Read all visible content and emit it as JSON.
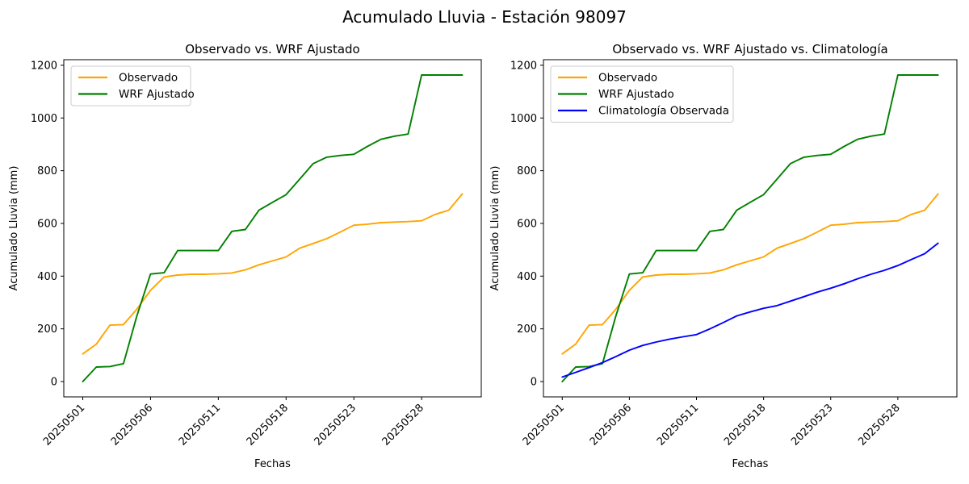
{
  "figure": {
    "title": "Acumulado Lluvia - Estación 98097"
  },
  "chart_data": [
    {
      "type": "line",
      "title": "Observado vs. WRF Ajustado",
      "xlabel": "Fechas",
      "ylabel": "Acumulado Lluvia (mm)",
      "n_points": 29,
      "x": [
        0,
        1,
        2,
        3,
        4,
        5,
        6,
        7,
        8,
        9,
        10,
        11,
        12,
        13,
        14,
        15,
        16,
        17,
        18,
        19,
        20,
        21,
        22,
        23,
        24,
        25,
        26,
        27,
        28
      ],
      "xticks": {
        "positions": [
          0,
          5,
          10,
          15,
          20,
          25
        ],
        "labels": [
          "20250501",
          "20250506",
          "20250511",
          "20250518",
          "20250523",
          "20250528"
        ],
        "rotation": 45
      },
      "yticks": [
        "0",
        "200",
        "400",
        "600",
        "800",
        "1000",
        "1200"
      ],
      "ytick_values": [
        0,
        200,
        400,
        600,
        800,
        1000,
        1200
      ],
      "ylim": [
        0,
        1200
      ],
      "grid": false,
      "legend_position": "upper left",
      "series": [
        {
          "name": "Observado",
          "color": "#FFA500",
          "values": [
            105,
            142,
            214,
            216,
            275,
            346,
            397,
            404,
            407,
            407,
            409,
            412,
            424,
            443,
            458,
            473,
            506,
            524,
            542,
            567,
            593,
            597,
            603,
            605,
            607,
            610,
            634,
            650,
            712
          ]
        },
        {
          "name": "WRF Ajustado",
          "color": "#008000",
          "values": [
            0,
            55,
            57,
            68,
            250,
            408,
            413,
            497,
            497,
            497,
            497,
            570,
            577,
            650,
            680,
            709,
            768,
            827,
            851,
            858,
            862,
            892,
            919,
            931,
            939,
            1163,
            1163,
            1163,
            1163
          ]
        }
      ]
    },
    {
      "type": "line",
      "title": "Observado vs. WRF Ajustado vs. Climatología",
      "xlabel": "Fechas",
      "ylabel": "Acumulado Lluvia (mm)",
      "n_points": 29,
      "x": [
        0,
        1,
        2,
        3,
        4,
        5,
        6,
        7,
        8,
        9,
        10,
        11,
        12,
        13,
        14,
        15,
        16,
        17,
        18,
        19,
        20,
        21,
        22,
        23,
        24,
        25,
        26,
        27,
        28
      ],
      "xticks": {
        "positions": [
          0,
          5,
          10,
          15,
          20,
          25
        ],
        "labels": [
          "20250501",
          "20250506",
          "20250511",
          "20250518",
          "20250523",
          "20250528"
        ],
        "rotation": 45
      },
      "yticks": [
        "0",
        "200",
        "400",
        "600",
        "800",
        "1000",
        "1200"
      ],
      "ytick_values": [
        0,
        200,
        400,
        600,
        800,
        1000,
        1200
      ],
      "ylim": [
        0,
        1200
      ],
      "grid": false,
      "legend_position": "upper left",
      "series": [
        {
          "name": "Observado",
          "color": "#FFA500",
          "values": [
            105,
            142,
            214,
            216,
            275,
            346,
            397,
            404,
            407,
            407,
            409,
            412,
            424,
            443,
            458,
            473,
            506,
            524,
            542,
            567,
            593,
            597,
            603,
            605,
            607,
            610,
            634,
            650,
            712
          ]
        },
        {
          "name": "WRF Ajustado",
          "color": "#008000",
          "values": [
            0,
            55,
            57,
            68,
            250,
            408,
            413,
            497,
            497,
            497,
            497,
            570,
            577,
            650,
            680,
            709,
            768,
            827,
            851,
            858,
            862,
            892,
            919,
            931,
            939,
            1163,
            1163,
            1163,
            1163
          ]
        },
        {
          "name": "Climatología Observada",
          "color": "#0000FF",
          "values": [
            17,
            35,
            53,
            72,
            95,
            119,
            137,
            150,
            161,
            170,
            178,
            200,
            224,
            249,
            264,
            278,
            288,
            305,
            322,
            339,
            354,
            371,
            390,
            407,
            422,
            440,
            463,
            485,
            525
          ]
        }
      ]
    }
  ]
}
